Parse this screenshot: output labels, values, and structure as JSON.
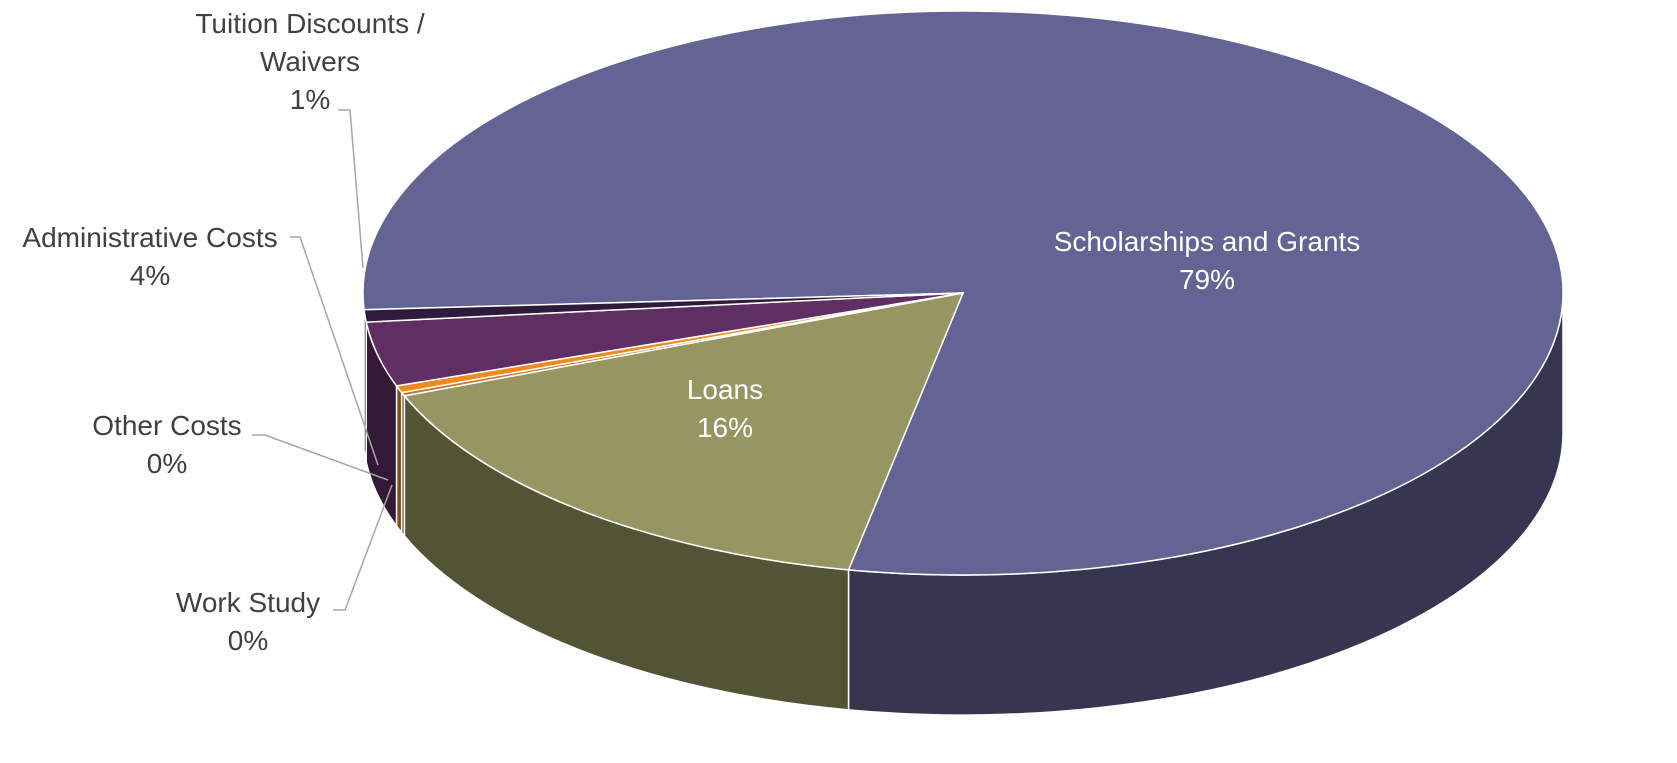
{
  "chart_data": {
    "type": "pie",
    "categories": [
      "Scholarships and Grants",
      "Loans",
      "Work Study",
      "Other Costs",
      "Administrative Costs",
      "Tuition Discounts / Waivers"
    ],
    "values": [
      79,
      16,
      0.2,
      0.4,
      3.7,
      0.7
    ],
    "value_labels": [
      "79%",
      "16%",
      "0%",
      "0%",
      "4%",
      "1%"
    ],
    "colors": [
      "#636394",
      "#979662",
      "#c87a2c",
      "#f08a1e",
      "#5f2e63",
      "#2e1a3a"
    ]
  }
}
